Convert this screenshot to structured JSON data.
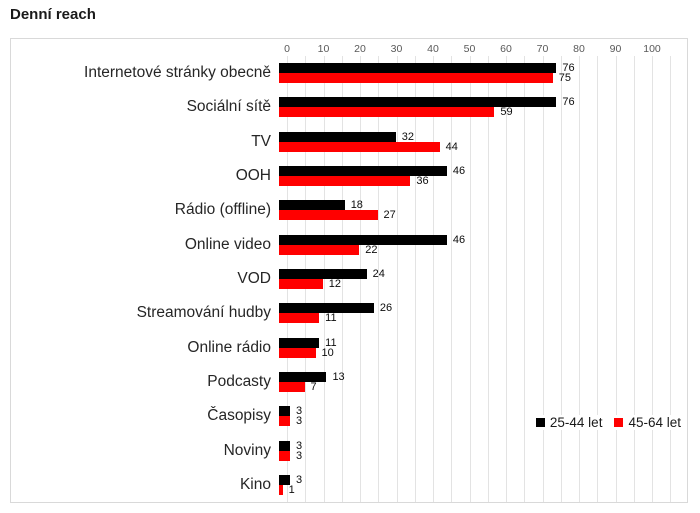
{
  "title": "Denní reach",
  "chart_data": {
    "type": "bar",
    "orientation": "horizontal",
    "title": "Denní reach",
    "categories": [
      "Internetové stránky obecně",
      "Sociální sítě",
      "TV",
      "OOH",
      "Rádio (offline)",
      "Online video",
      "VOD",
      "Streamování hudby",
      "Online rádio",
      "Podcasty",
      "Časopisy",
      "Noviny",
      "Kino"
    ],
    "series": [
      {
        "name": "25-44 let",
        "color": "#000000",
        "values": [
          76,
          76,
          32,
          46,
          18,
          46,
          24,
          26,
          11,
          13,
          3,
          3,
          3
        ]
      },
      {
        "name": "45-64 let",
        "color": "#ff0000",
        "values": [
          75,
          59,
          44,
          36,
          27,
          22,
          12,
          11,
          10,
          7,
          3,
          3,
          1
        ]
      }
    ],
    "xlim": [
      0,
      100
    ],
    "x_ticks": [
      0,
      10,
      20,
      30,
      40,
      50,
      60,
      70,
      80,
      90,
      100
    ],
    "minor_grid_step": 5,
    "grid": true,
    "grid_extends_to": 105,
    "data_labels": true,
    "legend_position": "inside-right",
    "colors": {
      "series1": "#000000",
      "series2": "#ff0000",
      "gridline": "#e3e3e3",
      "tick_text": "#595959",
      "label_text": "#262626",
      "border": "#d9d9d9"
    }
  }
}
